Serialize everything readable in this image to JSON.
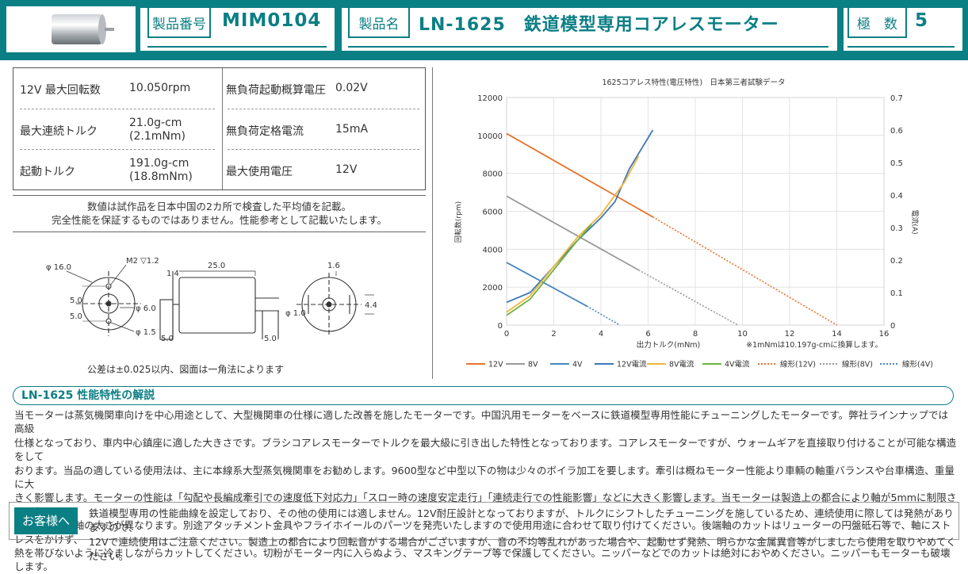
{
  "header": {
    "product_no_label": "製品番号",
    "product_no": "MIM0104",
    "product_name_label": "製品名",
    "product_name": "LN-1625　鉄道模型専用コアレスモーター",
    "poles_label": "極　数",
    "poles": "5"
  },
  "specs": [
    {
      "label": "12V 最大回転数",
      "value": "10.050rpm",
      "label2": "無負荷起動概算電圧",
      "value2": "0.02V"
    },
    {
      "label": "最大連続トルク",
      "value": "21.0g-cm",
      "value_sub": "(2.1mNm)",
      "label2": "無負荷定格電流",
      "value2": "15mA"
    },
    {
      "label": "起動トルク",
      "value": "191.0g-cm",
      "value_sub": "(18.8mNm)",
      "label2": "最大使用電圧",
      "value2": "12V"
    }
  ],
  "note": {
    "line1": "数値は試作品を日本中国の2カ所で検査した平均値を記載。",
    "line2": "完全性能を保証するものではありません。性能参考として記載いたします。"
  },
  "drawing": {
    "dim_phi16": "φ 16.0",
    "dim_m2": "M2 ▽1.2",
    "dim_25": "25.0",
    "dim_14": "1.4",
    "dim_16": "1.6",
    "dim_50a": "5.0",
    "dim_50b": "5.0",
    "dim_phi6": "φ 6.0",
    "dim_phi15": "φ 1.5",
    "dim_50c": "5.0",
    "dim_50d": "5.0",
    "dim_phi1": "φ 1.0",
    "dim_44": "4.4",
    "tolerance": "公差は±0.025以内、図面は一角法によります"
  },
  "chart_data": {
    "type": "line",
    "title": "1625コアレス特性(電圧特性)　日本第三者試験データ",
    "xlabel": "出力トルク(mNm)",
    "ylabel": "回転数(rpm)",
    "y2label": "電流(A)",
    "xlim": [
      0,
      16
    ],
    "ylim": [
      0,
      12000
    ],
    "y2lim": [
      0,
      0.7
    ],
    "x_ticks": [
      "0",
      "2",
      "4",
      "6",
      "8",
      "10",
      "12",
      "14",
      "16"
    ],
    "y_ticks": [
      "0",
      "2000",
      "4000",
      "6000",
      "8000",
      "10000",
      "12000"
    ],
    "y2_ticks": [
      "0",
      "0.1",
      "0.2",
      "0.3",
      "0.4",
      "0.5",
      "0.6",
      "0.7"
    ],
    "footnote": "※1mNmは10.197g-cmに換算します。",
    "series": [
      {
        "name": "12V",
        "axis": "left",
        "color": "#e8742c",
        "style": "solid",
        "x": [
          0,
          6.2
        ],
        "y": [
          10100,
          5700
        ]
      },
      {
        "name": "8V",
        "axis": "left",
        "color": "#999999",
        "style": "solid",
        "x": [
          0,
          5.6
        ],
        "y": [
          6800,
          2900
        ]
      },
      {
        "name": "4V",
        "axis": "left",
        "color": "#4a86c0",
        "style": "solid",
        "x": [
          0,
          3.4
        ],
        "y": [
          3300,
          1000
        ]
      },
      {
        "name": "12V電流",
        "axis": "right",
        "color": "#3c78b8",
        "style": "solid",
        "x": [
          0,
          1.0,
          2.0,
          3.0,
          4.0,
          4.6,
          5.2,
          6.2
        ],
        "y": [
          0.07,
          0.1,
          0.18,
          0.26,
          0.33,
          0.38,
          0.48,
          0.6
        ]
      },
      {
        "name": "8V電流",
        "axis": "right",
        "color": "#f2b63c",
        "style": "solid",
        "x": [
          0,
          1.0,
          2.0,
          3.0,
          4.0,
          5.0,
          5.6
        ],
        "y": [
          0.04,
          0.09,
          0.18,
          0.27,
          0.34,
          0.44,
          0.52
        ]
      },
      {
        "name": "4V電流",
        "axis": "right",
        "color": "#6db33f",
        "style": "solid",
        "x": [
          0,
          1.0,
          2.0,
          3.0,
          3.6
        ],
        "y": [
          0.03,
          0.08,
          0.17,
          0.26,
          0.31
        ]
      },
      {
        "name": "線形(12V)",
        "axis": "left",
        "color": "#e8742c",
        "style": "dotted",
        "x": [
          6.2,
          14
        ],
        "y": [
          5700,
          0
        ]
      },
      {
        "name": "線形(8V)",
        "axis": "left",
        "color": "#999999",
        "style": "dotted",
        "x": [
          5.6,
          9.8
        ],
        "y": [
          2900,
          0
        ]
      },
      {
        "name": "線形(4V)",
        "axis": "left",
        "color": "#4a86c0",
        "style": "dotted",
        "x": [
          3.4,
          4.8
        ],
        "y": [
          1000,
          0
        ]
      }
    ],
    "legend": [
      "12V",
      "8V",
      "4V",
      "12V電流",
      "8V電流",
      "4V電流",
      "線形(12V)",
      "線形(8V)",
      "線形(4V)"
    ]
  },
  "section": {
    "title": "LN-1625 性能特性の解説",
    "lines": [
      "当モーターは蒸気機関車向けを中心用途として、大型機関車の仕様に適した改善を施したモーターです。中国汎用モーターをベースに鉄道模型専用性能にチューニングしたモーターです。弊社ラインナップでは高級",
      "仕様となっており、車内中心鎮座に適した大きさです。ブラシコアレスモーターでトルクを最大級に引き出した特性となっております。コアレスモーターですが、ウォームギアを直接取り付けることが可能な構造をして",
      "おります。当品の適している使用法は、主に本線系大型蒸気機関車をお勧めします。9600型など中型以下の物は少々のボイラ加工を要します。牽引は概ねモーター性能より車輌の軸重バランスや台車構造、重量に大",
      "きく影響します。モーターの性能は「勾配や長編成牽引での速度低下対応力」「スロー時の速度安定走行」「連続走行での性能影響」などに大きく影響します。当モーターは製造上の都合により軸が5mmに制限されており",
      "、また両方で軸の太さが異なります。別途アタッチメント金具やフライホイールのパーツを発売いたしますので使用用途に合わせて取り付けてください。後端軸のカットはリューターの円盤砥石等で、軸にストレスをかけず、",
      "熱を帯びないように冷ましながらカットしてください。切粉がモーター内に入らぬよう、マスキングテープ等で保護してください。ニッパーなどでのカットは絶対におやめください。ニッパーもモーターも破壊します。"
    ]
  },
  "customer": {
    "label": "お客様へ",
    "line1": "鉄道模型専用の性能曲線を設定しており、その他の使用には適しません。12V耐圧設計となっておりますが、トルクにシフトしたチューニングを施しているため、連続使用に際しては発熱がありますので、",
    "line2": "12Vで連続使用はご注意ください。製造上の都合により回転音がする場合がございますが、音の不均等乱れがあった場合や、起動せず発熱、明らかな金属異音等がしましたら使用を取りやめてください。"
  }
}
